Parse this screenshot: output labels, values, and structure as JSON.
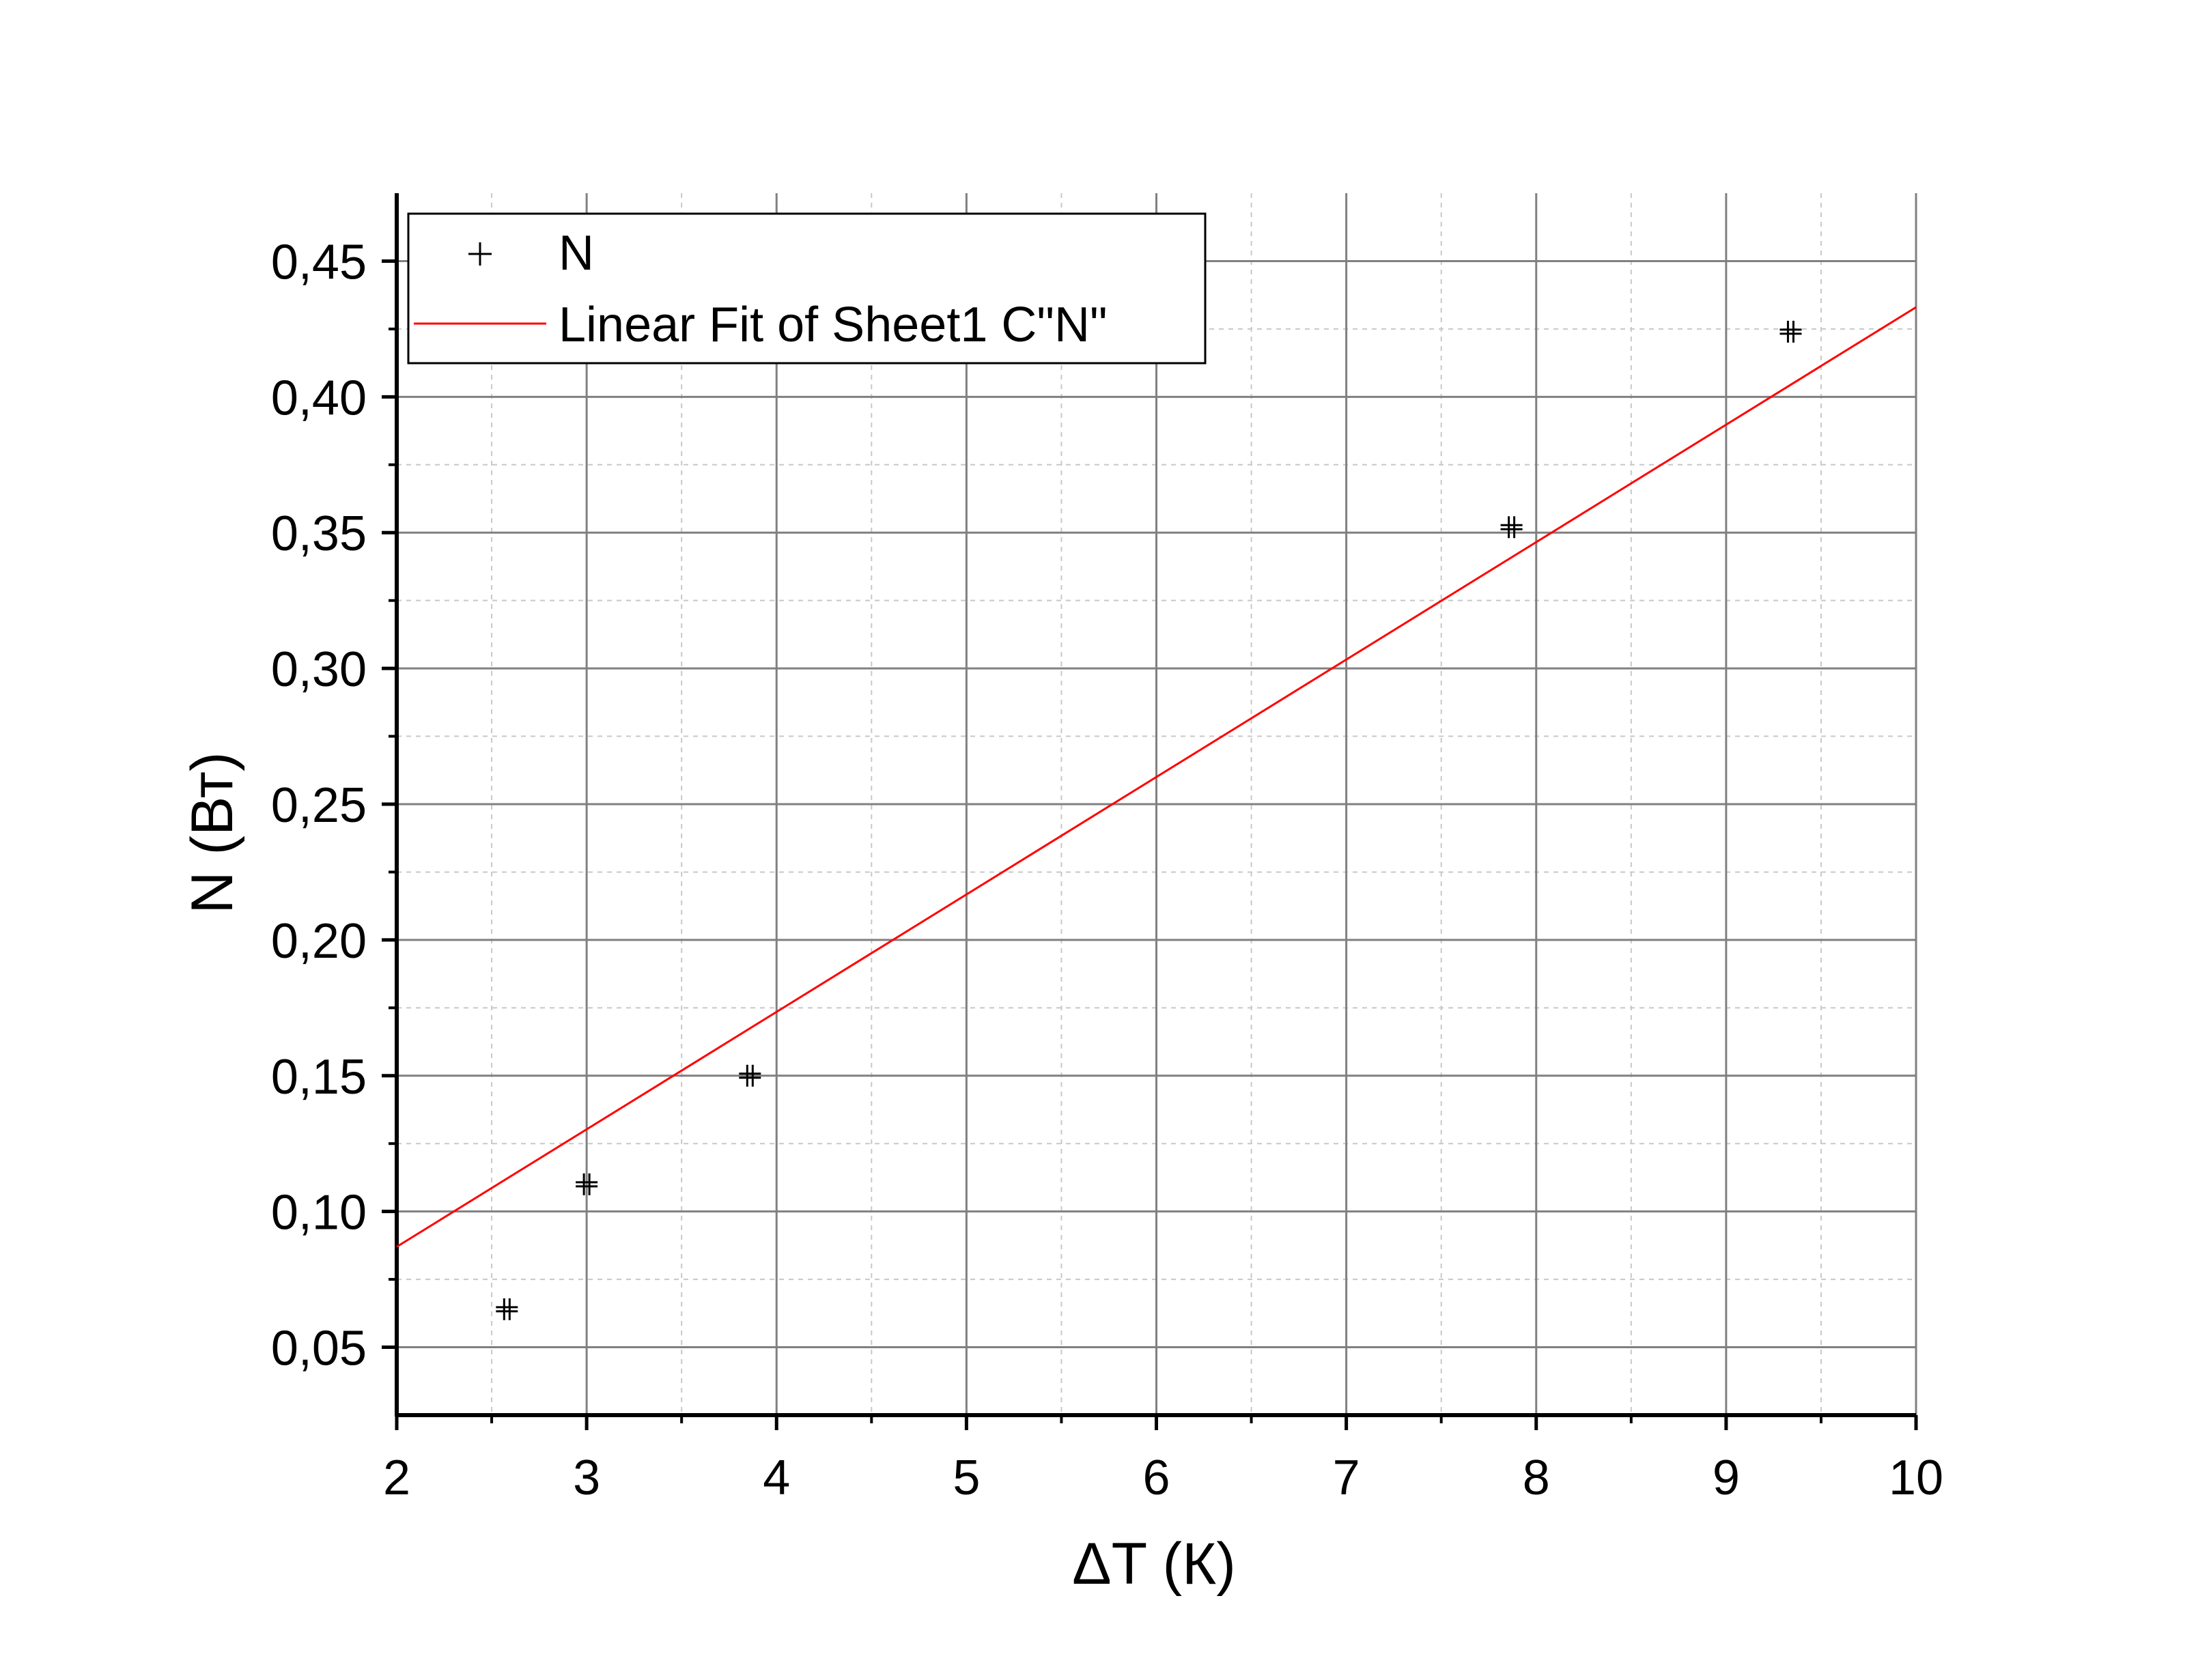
{
  "chart_data": {
    "type": "scatter",
    "title": "",
    "xlabel": "ΔT (К)",
    "ylabel": "N (Вт)",
    "xlim": [
      2,
      10
    ],
    "ylim": [
      0.025,
      0.475
    ],
    "x_ticks": [
      2,
      3,
      4,
      5,
      6,
      7,
      8,
      9,
      10
    ],
    "x_tick_labels": [
      "2",
      "3",
      "4",
      "5",
      "6",
      "7",
      "8",
      "9",
      "10"
    ],
    "y_ticks": [
      0.05,
      0.1,
      0.15,
      0.2,
      0.25,
      0.3,
      0.35,
      0.4,
      0.45
    ],
    "y_tick_labels": [
      "0,05",
      "0,10",
      "0,15",
      "0,20",
      "0,25",
      "0,30",
      "0,35",
      "0,40",
      "0,45"
    ],
    "grid": true,
    "legend_position": "top-left",
    "series": [
      {
        "name": "N",
        "kind": "points",
        "marker": "cross",
        "color": "#000000",
        "x": [
          2.58,
          3.0,
          3.86,
          7.87,
          9.34
        ],
        "y": [
          0.064,
          0.11,
          0.15,
          0.352,
          0.424
        ]
      },
      {
        "name": "Linear Fit of Sheet1 C\"N\"",
        "kind": "line",
        "color": "#ff0000",
        "x": [
          2,
          10
        ],
        "y": [
          0.087,
          0.433
        ]
      }
    ]
  }
}
